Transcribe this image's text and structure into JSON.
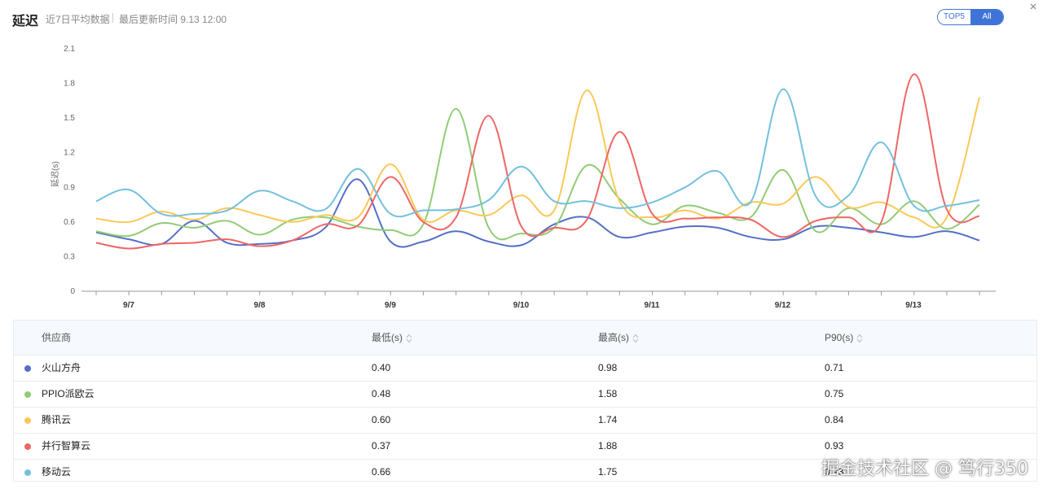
{
  "header": {
    "title": "延迟",
    "subtitle": "近7日平均数据",
    "updated": "最后更新时间 9.13 12:00",
    "toggle": {
      "options": [
        "TOP5",
        "All"
      ],
      "selected": "TOP5"
    }
  },
  "colors": {
    "accent": "#3f73d8",
    "series": [
      "#5470c6",
      "#91cc75",
      "#fac858",
      "#ee6666",
      "#73c0de"
    ]
  },
  "chart_data": {
    "type": "line",
    "ylabel": "延迟(s)",
    "ylim": [
      0,
      2.1
    ],
    "yticks": [
      "0",
      "0.3",
      "0.6",
      "0.9",
      "1.2",
      "1.5",
      "1.8",
      "2.1"
    ],
    "xlabels": [
      "9/7",
      "9/8",
      "9/9",
      "9/10",
      "9/11",
      "9/12",
      "9/13"
    ],
    "series": [
      {
        "name": "火山方舟",
        "values": [
          0.51,
          0.45,
          0.41,
          0.61,
          0.42,
          0.41,
          0.44,
          0.55,
          0.97,
          0.43,
          0.43,
          0.52,
          0.43,
          0.4,
          0.58,
          0.64,
          0.47,
          0.51,
          0.56,
          0.55,
          0.47,
          0.45,
          0.56,
          0.55,
          0.51,
          0.47,
          0.52,
          0.44
        ]
      },
      {
        "name": "PPIO派欧云",
        "values": [
          0.52,
          0.48,
          0.59,
          0.55,
          0.61,
          0.49,
          0.62,
          0.64,
          0.56,
          0.53,
          0.58,
          1.58,
          0.55,
          0.5,
          0.55,
          1.09,
          0.8,
          0.58,
          0.74,
          0.68,
          0.64,
          1.05,
          0.52,
          0.72,
          0.58,
          0.78,
          0.54,
          0.75
        ]
      },
      {
        "name": "腾讯云",
        "values": [
          0.63,
          0.6,
          0.69,
          0.62,
          0.72,
          0.66,
          0.6,
          0.66,
          0.64,
          1.1,
          0.62,
          0.7,
          0.66,
          0.83,
          0.7,
          1.74,
          0.78,
          0.64,
          0.7,
          0.63,
          0.77,
          0.76,
          0.99,
          0.73,
          0.77,
          0.64,
          0.64,
          1.68
        ]
      },
      {
        "name": "并行智算云",
        "values": [
          0.42,
          0.37,
          0.41,
          0.42,
          0.45,
          0.39,
          0.44,
          0.58,
          0.57,
          0.99,
          0.6,
          0.64,
          1.52,
          0.56,
          0.55,
          0.62,
          1.38,
          0.67,
          0.63,
          0.64,
          0.62,
          0.47,
          0.61,
          0.64,
          0.6,
          1.88,
          0.71,
          0.65
        ]
      },
      {
        "name": "移动云",
        "values": [
          0.78,
          0.88,
          0.67,
          0.67,
          0.7,
          0.87,
          0.78,
          0.71,
          1.06,
          0.67,
          0.7,
          0.71,
          0.79,
          1.08,
          0.78,
          0.78,
          0.72,
          0.77,
          0.9,
          1.04,
          0.77,
          1.75,
          0.82,
          0.83,
          1.29,
          0.74,
          0.74,
          0.79
        ]
      }
    ]
  },
  "table": {
    "columns": [
      "供应商",
      "最低(s)",
      "最高(s)",
      "P90(s)"
    ],
    "rows": [
      {
        "name": "火山方舟",
        "min": "0.40",
        "max": "0.98",
        "p90": "0.71",
        "color": "#5470c6"
      },
      {
        "name": "PPIO派欧云",
        "min": "0.48",
        "max": "1.58",
        "p90": "0.75",
        "color": "#91cc75"
      },
      {
        "name": "腾讯云",
        "min": "0.60",
        "max": "1.74",
        "p90": "0.84",
        "color": "#fac858"
      },
      {
        "name": "并行智算云",
        "min": "0.37",
        "max": "1.88",
        "p90": "0.93",
        "color": "#ee6666"
      },
      {
        "name": "移动云",
        "min": "0.66",
        "max": "1.75",
        "p90": "0.93",
        "color": "#73c0de"
      }
    ]
  },
  "watermark": "掘金技术社区 @ 笃行350"
}
